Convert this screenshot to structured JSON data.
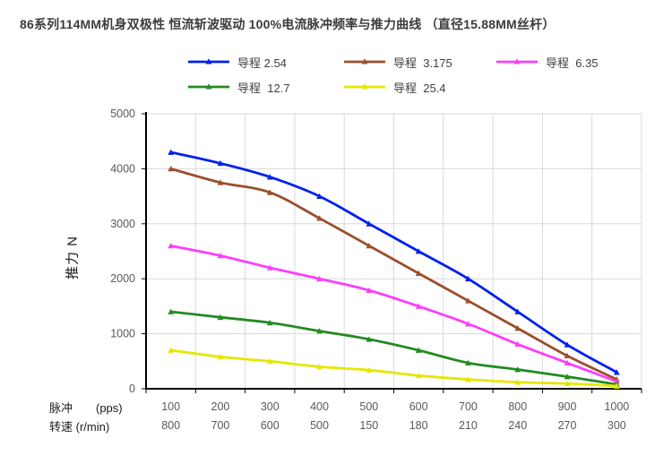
{
  "page": {
    "title": "86系列114MM机身双极性 恒流斩波驱动 100%电流脉冲频率与推力曲线 （直径15.88MM丝杆）"
  },
  "chart_data": {
    "type": "line",
    "title": "86系列114MM机身双极性 恒流斩波驱动 100%电流脉冲频率与推力曲线 （直径15.88MM丝杆）",
    "line_style": "smooth",
    "marker": "triangle",
    "grid": true,
    "legend_position": "top",
    "categories": [
      100,
      200,
      300,
      400,
      500,
      600,
      700,
      800,
      900,
      1000
    ],
    "x_axis_rows": [
      {
        "label": "脉冲　　(pps)",
        "values": [
          "100",
          "200",
          "300",
          "400",
          "500",
          "600",
          "700",
          "800",
          "900",
          "1000"
        ]
      },
      {
        "label": "转速 (r/min)",
        "values": [
          "800",
          "700",
          "600",
          "500",
          "150",
          "180",
          "210",
          "240",
          "270",
          "300"
        ]
      }
    ],
    "ylabel": "推力 N",
    "ylim": [
      0,
      5000
    ],
    "ytick_step": 1000,
    "yticks": [
      0,
      1000,
      2000,
      3000,
      4000,
      5000
    ],
    "series": [
      {
        "name": "导程 2.54",
        "color": "#0020EE",
        "values": [
          4300,
          4100,
          3850,
          3500,
          3000,
          2500,
          2000,
          1400,
          800,
          300
        ]
      },
      {
        "name": "导程  3.175",
        "color": "#9B4F2B",
        "values": [
          4000,
          3750,
          3570,
          3100,
          2600,
          2100,
          1600,
          1100,
          600,
          170
        ]
      },
      {
        "name": "导程  6.35",
        "color": "#FA3FFA",
        "values": [
          2600,
          2420,
          2200,
          2000,
          1790,
          1500,
          1180,
          810,
          470,
          130
        ]
      },
      {
        "name": "导程  12.7",
        "color": "#238B23",
        "values": [
          1400,
          1300,
          1200,
          1050,
          900,
          700,
          470,
          350,
          220,
          80
        ]
      },
      {
        "name": "导程  25.4",
        "color": "#E6E600",
        "values": [
          700,
          580,
          500,
          400,
          340,
          240,
          170,
          120,
          95,
          50
        ]
      }
    ],
    "colors": {
      "grid": "#D9D9D9",
      "axis": "#000000",
      "tick_text": "#595959",
      "title_text": "#3B3B3B",
      "background": "#FFFFFF"
    }
  }
}
